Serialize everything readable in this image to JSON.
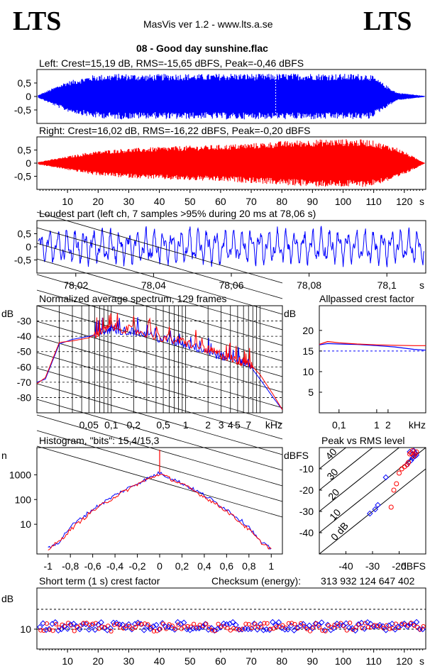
{
  "header": {
    "logo_left": "LTS",
    "logo_right": "LTS",
    "app_version": "MasVis ver 1.2 - www.lts.a.se",
    "filename": "08 - Good day sunshine.flac"
  },
  "colors": {
    "left": "#0000ff",
    "right": "#ff0000",
    "grid": "#000000"
  },
  "chart_data": [
    {
      "id": "left-waveform",
      "type": "area",
      "title": "Left: Crest=15,19 dB, RMS=-15,65 dBFS, Peak=-0,46 dBFS",
      "ylim": [
        -1,
        1
      ],
      "yticks": [
        "0,5",
        "0",
        "-0,5"
      ],
      "xlim": [
        0,
        127
      ],
      "series": [
        {
          "values_envelope": [
            0.05,
            0.55,
            0.8,
            0.85,
            0.82,
            0.85,
            0.83,
            0.86,
            0.84,
            0.85,
            0.86,
            0.84,
            0.85,
            0.15,
            0.02
          ]
        }
      ]
    },
    {
      "id": "right-waveform",
      "type": "area",
      "title": "Right: Crest=16,02 dB, RMS=-16,22 dBFS, Peak=-0,20 dBFS",
      "ylim": [
        -1,
        1
      ],
      "yticks": [
        "0,5",
        "0",
        "-0,5"
      ],
      "xlim": [
        0,
        127
      ],
      "xticks": [
        "10",
        "20",
        "30",
        "40",
        "50",
        "60",
        "70",
        "80",
        "90",
        "100",
        "110",
        "120"
      ],
      "xunit": "s",
      "series": [
        {
          "values_envelope": [
            0.05,
            0.25,
            0.45,
            0.55,
            0.6,
            0.65,
            0.68,
            0.72,
            0.78,
            0.85,
            0.9,
            0.92,
            0.9,
            0.6,
            0.02
          ]
        }
      ]
    },
    {
      "id": "loudest-part",
      "type": "line",
      "title": "Loudest part (left  ch, 7 samples >95% during 20 ms at 78,06 s)",
      "ylim": [
        -1,
        1
      ],
      "yticks": [
        "0,5",
        "0",
        "-0,5"
      ],
      "xlim": [
        78.01,
        78.11
      ],
      "xticks": [
        "78,02",
        "78,04",
        "78,06",
        "78,08",
        "78,1"
      ],
      "xunit": "s"
    },
    {
      "id": "average-spectrum",
      "type": "line",
      "title": "Normalized average spectrum, 129 frames",
      "ylabel": "dB",
      "ylim": [
        -90,
        -20
      ],
      "yticks": [
        "-30",
        "-40",
        "-50",
        "-60",
        "-70",
        "-80"
      ],
      "xscale": "log",
      "xlim": [
        0.01,
        20
      ],
      "xticks": [
        "0,05",
        "0,1",
        "0,2",
        "0,5",
        "1",
        "2",
        "3",
        "4",
        "5",
        "7"
      ],
      "xunit": "kHz",
      "series": [
        {
          "color": "left",
          "x": [
            0.01,
            0.013,
            0.02,
            0.03,
            0.05,
            0.07,
            0.1,
            0.2,
            0.5,
            1,
            2,
            3,
            5,
            7,
            10,
            15,
            20
          ],
          "values": [
            -70,
            -68,
            -45,
            -42,
            -40,
            -38,
            -35,
            -37,
            -42,
            -45,
            -50,
            -53,
            -55,
            -58,
            -68,
            -80,
            -88
          ]
        },
        {
          "color": "right",
          "x": [
            0.01,
            0.013,
            0.02,
            0.03,
            0.05,
            0.07,
            0.1,
            0.2,
            0.5,
            1,
            2,
            3,
            5,
            7,
            10,
            15,
            20
          ],
          "values": [
            -71,
            -67,
            -44,
            -43,
            -41,
            -37,
            -34,
            -36,
            -41,
            -44,
            -49,
            -52,
            -56,
            -57,
            -65,
            -78,
            -88
          ]
        }
      ]
    },
    {
      "id": "allpassed-crest",
      "type": "line",
      "title": "Allpassed crest factor",
      "ylabel": "dB",
      "ylim": [
        0,
        26
      ],
      "yticks": [
        "20",
        "15",
        "10",
        "5"
      ],
      "xscale": "log",
      "xlim": [
        0.03,
        20
      ],
      "xticks": [
        "0,1",
        "1",
        "2"
      ],
      "xunit": "kHz",
      "series": [
        {
          "color": "left",
          "x": [
            0.03,
            0.05,
            0.1,
            0.3,
            1,
            3,
            10,
            20
          ],
          "values": [
            16.5,
            16.8,
            16.7,
            16.6,
            16.3,
            16.0,
            15.4,
            15.2
          ]
        },
        {
          "color": "right",
          "x": [
            0.03,
            0.05,
            0.1,
            0.3,
            1,
            3,
            10,
            20
          ],
          "values": [
            16.6,
            17.3,
            17.0,
            16.7,
            16.5,
            16.4,
            16.3,
            16.3
          ]
        }
      ]
    },
    {
      "id": "histogram",
      "type": "line",
      "title": "Histogram, \"bits\": 15,4/15,3",
      "ylabel": "n",
      "yscale": "log",
      "yticks": [
        "1000",
        "100",
        "10"
      ],
      "xlim": [
        -1.1,
        1.1
      ],
      "xticks": [
        "-1",
        "-0,8",
        "-0,6",
        "-0,4",
        "-0,2",
        "0",
        "0,2",
        "0,4",
        "0,6",
        "0,8",
        "1"
      ],
      "series": [
        {
          "color": "left",
          "x": [
            -1,
            -0.9,
            -0.8,
            -0.6,
            -0.4,
            -0.2,
            0,
            0.2,
            0.4,
            0.6,
            0.8,
            0.9,
            1
          ],
          "values": [
            1,
            2,
            8,
            40,
            150,
            450,
            1200,
            450,
            150,
            40,
            8,
            2,
            1
          ]
        },
        {
          "color": "right",
          "x": [
            -1,
            -0.9,
            -0.8,
            -0.6,
            -0.4,
            -0.2,
            0,
            0.2,
            0.4,
            0.6,
            0.8,
            0.9,
            1
          ],
          "values": [
            1,
            2,
            6,
            35,
            130,
            420,
            1100,
            420,
            130,
            35,
            6,
            2,
            1
          ]
        }
      ]
    },
    {
      "id": "peak-vs-rms",
      "type": "scatter",
      "title": "Peak vs RMS level",
      "ylabel": "dBFS",
      "xlabel": "dBFS",
      "xlim": [
        -50,
        -10
      ],
      "ylim": [
        -50,
        0
      ],
      "yticks": [
        "-10",
        "-20",
        "-30",
        "-40"
      ],
      "xticks": [
        "-40",
        "-30",
        "-20"
      ],
      "diagonal_labels": [
        "40",
        "30",
        "20",
        "10",
        "0 dB"
      ],
      "series": [
        {
          "color": "left",
          "x": [
            -16,
            -15,
            -14.5,
            -14,
            -15.5,
            -16.5,
            -17,
            -14,
            -13.5,
            -15,
            -25,
            -28,
            -29,
            -31
          ],
          "y": [
            -2,
            -3,
            -1.5,
            -4,
            -6,
            -7,
            -8,
            -2.5,
            -3.5,
            -5,
            -14,
            -27,
            -29,
            -31
          ]
        },
        {
          "color": "right",
          "x": [
            -16,
            -15.5,
            -15,
            -14.5,
            -16.5,
            -17,
            -18,
            -19,
            -20,
            -21,
            -22,
            -23,
            -14,
            -13.5
          ],
          "y": [
            -3,
            -2.5,
            -1.5,
            -4,
            -7,
            -8,
            -9,
            -10,
            -12,
            -17,
            -20,
            -28,
            -3,
            -2
          ]
        }
      ]
    },
    {
      "id": "short-term-crest",
      "type": "scatter",
      "title": "Short term (1 s) crest factor",
      "ylabel": "dB",
      "yticks": [
        "10"
      ],
      "xlim": [
        0,
        127
      ],
      "xticks": [
        "10",
        "20",
        "30",
        "40",
        "50",
        "60",
        "70",
        "80",
        "90",
        "100",
        "110",
        "120"
      ],
      "xunit": "s"
    }
  ],
  "checksum": {
    "label": "Checksum (energy):",
    "value": "313 932 124 647 402"
  }
}
